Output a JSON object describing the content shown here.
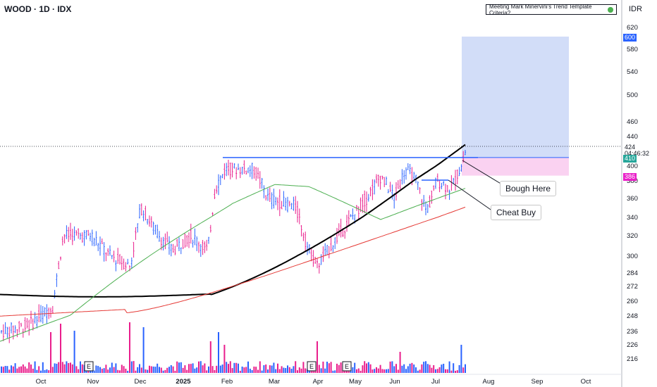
{
  "header": {
    "symbol_title": "WOOD · 1D · IDX",
    "criteria_label": "Meeting Mark Minervini's Trend Template Criteria?",
    "currency": "IDR"
  },
  "annotations": {
    "bought_label": "Bough Here",
    "cheat_label": "Cheat Buy"
  },
  "price_tags": {
    "target": "600",
    "last": "424",
    "countdown": "04:46:32",
    "entry": "410",
    "stop": "386"
  },
  "colors": {
    "up": "#2962ff",
    "down": "#e91e8c",
    "ma50": "#4caf50",
    "ma150": "#e53935",
    "ma200": "#000000",
    "target_zone": "#cdd9f7",
    "stop_zone": "#f9cdf0"
  },
  "chart_data": {
    "type": "candlestick",
    "y_ticks": [
      620,
      580,
      540,
      500,
      460,
      440,
      400,
      380,
      360,
      340,
      320,
      300,
      284,
      272,
      260,
      248,
      236,
      226,
      216
    ],
    "x_ticks": [
      "Oct",
      "Nov",
      "Dec",
      "2025",
      "Feb",
      "Mar",
      "Apr",
      "May",
      "Jun",
      "Jul",
      "Aug",
      "Sep",
      "Oct"
    ],
    "earnings_markers": [
      "E",
      "E",
      "E"
    ],
    "resistance_level": 410,
    "cheat_level": 380
  }
}
